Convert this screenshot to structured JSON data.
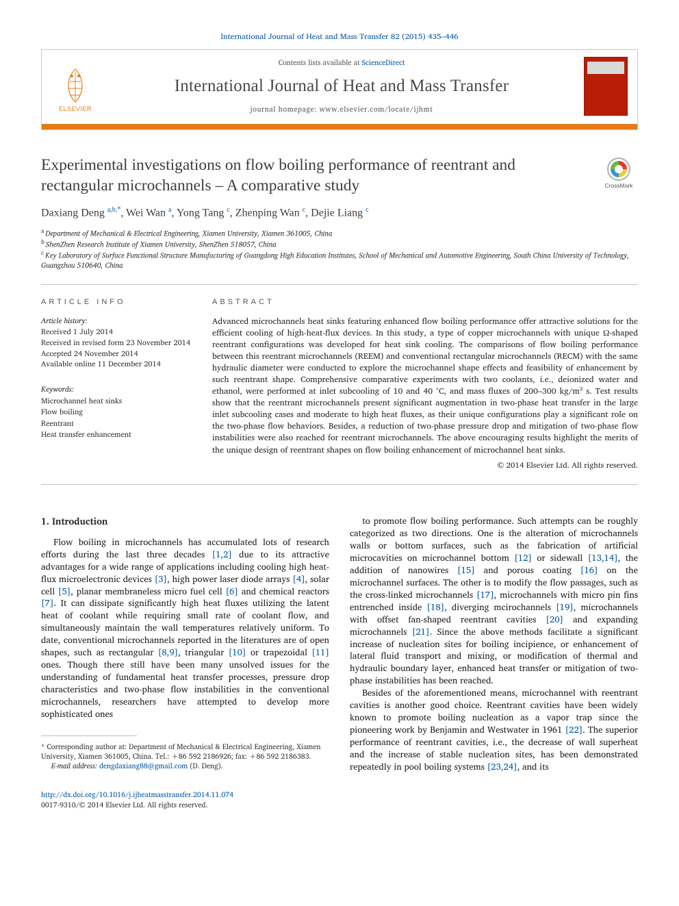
{
  "top_citation": "International Journal of Heat and Mass Transfer 82 (2015) 435–446",
  "header": {
    "contents_prefix": "Contents lists available at ",
    "contents_link": "ScienceDirect",
    "journal_name": "International Journal of Heat and Mass Transfer",
    "homepage_prefix": "journal homepage: ",
    "homepage_url": "www.elsevier.com/locate/ijhmt",
    "publisher": "ELSEVIER"
  },
  "crossmark_label": "CrossMark",
  "title": "Experimental investigations on flow boiling performance of reentrant and rectangular microchannels – A comparative study",
  "authors_html": "Daxiang Deng <sup><a>a,b,</a></sup><a><sup>*</sup></a>, Wei Wan <sup><a>a</a></sup>, Yong Tang <sup><a>c</a></sup>, Zhenping Wan <sup><a>c</a></sup>, Dejie Liang <sup><a>c</a></sup>",
  "affiliations": [
    {
      "sup": "a",
      "text": "Department of Mechanical & Electrical Engineering, Xiamen University, Xiamen 361005, China"
    },
    {
      "sup": "b",
      "text": "ShenZhen Research Institute of Xiamen University, ShenZhen 518057, China"
    },
    {
      "sup": "c",
      "text": "Key Laboratory of Surface Functional Structure Manufacturing of Guangdong High Education Institutes, School of Mechanical and Automotive Engineering, South China University of Technology, Guangzhou 510640, China"
    }
  ],
  "article_info": {
    "heading": "ARTICLE INFO",
    "history_label": "Article history:",
    "history": [
      "Received 1 July 2014",
      "Received in revised form 23 November 2014",
      "Accepted 24 November 2014",
      "Available online 11 December 2014"
    ],
    "keywords_label": "Keywords:",
    "keywords": [
      "Microchannel heat sinks",
      "Flow boiling",
      "Reentrant",
      "Heat transfer enhancement"
    ]
  },
  "abstract": {
    "heading": "ABSTRACT",
    "text": "Advanced microchannels heat sinks featuring enhanced flow boiling performance offer attractive solutions for the efficient cooling of high-heat-flux devices. In this study, a type of copper microchannels with unique Ω-shaped reentrant configurations was developed for heat sink cooling. The comparisons of flow boiling performance between this reentrant microchannels (REEM) and conventional rectangular microchannels (RECM) with the same hydraulic diameter were conducted to explore the microchannel shape effects and feasibility of enhancement by such reentrant shape. Comprehensive comparative experiments with two coolants, i.e., deionized water and ethanol, were performed at inlet subcooling of 10 and 40 °C, and mass fluxes of 200–300 kg/m² s. Test results show that the reentrant microchannels present significant augmentation in two-phase heat transfer in the large inlet subcooling cases and moderate to high heat fluxes, as their unique configurations play a significant role on the two-phase flow behaviors. Besides, a reduction of two-phase pressure drop and mitigation of two-phase flow instabilities were also reached for reentrant microchannels. The above encouraging results highlight the merits of the unique design of reentrant shapes on flow boiling enhancement of microchannel heat sinks.",
    "copyright": "© 2014 Elsevier Ltd. All rights reserved."
  },
  "body": {
    "section_heading": "1. Introduction",
    "col1_para": "Flow boiling in microchannels has accumulated lots of research efforts during the last three decades <a class='ref'>[1,2]</a> due to its attractive advantages for a wide range of applications including cooling high heat-flux microelectronic devices <a class='ref'>[3]</a>, high power laser diode arrays <a class='ref'>[4]</a>, solar cell <a class='ref'>[5]</a>, planar membraneless micro fuel cell <a class='ref'>[6]</a> and chemical reactors <a class='ref'>[7]</a>. It can dissipate significantly high heat fluxes utilizing the latent heat of coolant while requiring small rate of coolant flow, and simultaneously maintain the wall temperatures relatively uniform. To date, conventional microchannels reported in the literatures are of open shapes, such as rectangular <a class='ref'>[8,9]</a>, triangular <a class='ref'>[10]</a> or trapezoidal <a class='ref'>[11]</a> ones. Though there still have been many unsolved issues for the understanding of fundamental heat transfer processes, pressure drop characteristics and two-phase flow instabilities in the conventional microchannels, researchers have attempted to develop more sophisticated ones",
    "col2_para1": "to promote flow boiling performance. Such attempts can be roughly categorized as two directions. One is the alteration of microchannels walls or bottom surfaces, such as the fabrication of artificial microcavities on microchannel bottom <a class='ref'>[12]</a> or sidewall <a class='ref'>[13,14]</a>, the addition of nanowires <a class='ref'>[15]</a> and porous coating <a class='ref'>[16]</a> on the microchannel surfaces. The other is to modify the flow passages, such as the cross-linked microchannels <a class='ref'>[17]</a>, microchannels with micro pin fins entrenched inside <a class='ref'>[18]</a>, diverging mcirochannels <a class='ref'>[19]</a>, microchannels with offset fan-shaped reentrant cavities <a class='ref'>[20]</a> and expanding microchannels <a class='ref'>[21]</a>. Since the above methods facilitate a significant increase of nucleation sites for boiling incipience, or enhancement of lateral fluid transport and mixing, or modification of thermal and hydraulic boundary layer, enhanced heat transfer or mitigation of two-phase instabilities has been reached.",
    "col2_para2": "Besides of the aforementioned means, microchannel with reentrant cavities is another good choice. Reentrant cavities have been widely known to promote boiling nucleation as a vapor trap since the pioneering work by Benjamin and Westwater in 1961 <a class='ref'>[22]</a>. The superior performance of reentrant cavities, i.e., the decrease of wall superheat and the increase of stable nucleation sites, has been demonstrated repeatedly in pool boiling systems <a class='ref'>[23,24]</a>, and its"
  },
  "footnote": {
    "corr_label": "* Corresponding author at: ",
    "corr_text": "Department of Mechanical & Electrical Engineering, Xiamen University, Xiamen 361005, China. Tel.: +86 592 2186926; fax: +86 592 2186383.",
    "email_label": "E-mail address:",
    "email": "dengdaxiang88@gmail.com",
    "email_who": "(D. Deng)."
  },
  "doi": {
    "url": "http://dx.doi.org/10.1016/j.ijheatmasstransfer.2014.11.074",
    "issn_line": "0017-9310/© 2014 Elsevier Ltd. All rights reserved."
  },
  "colors": {
    "link": "#0056a3",
    "accent": "#e67a17",
    "cover": "#b81e06",
    "rule": "#bfbfbf"
  }
}
